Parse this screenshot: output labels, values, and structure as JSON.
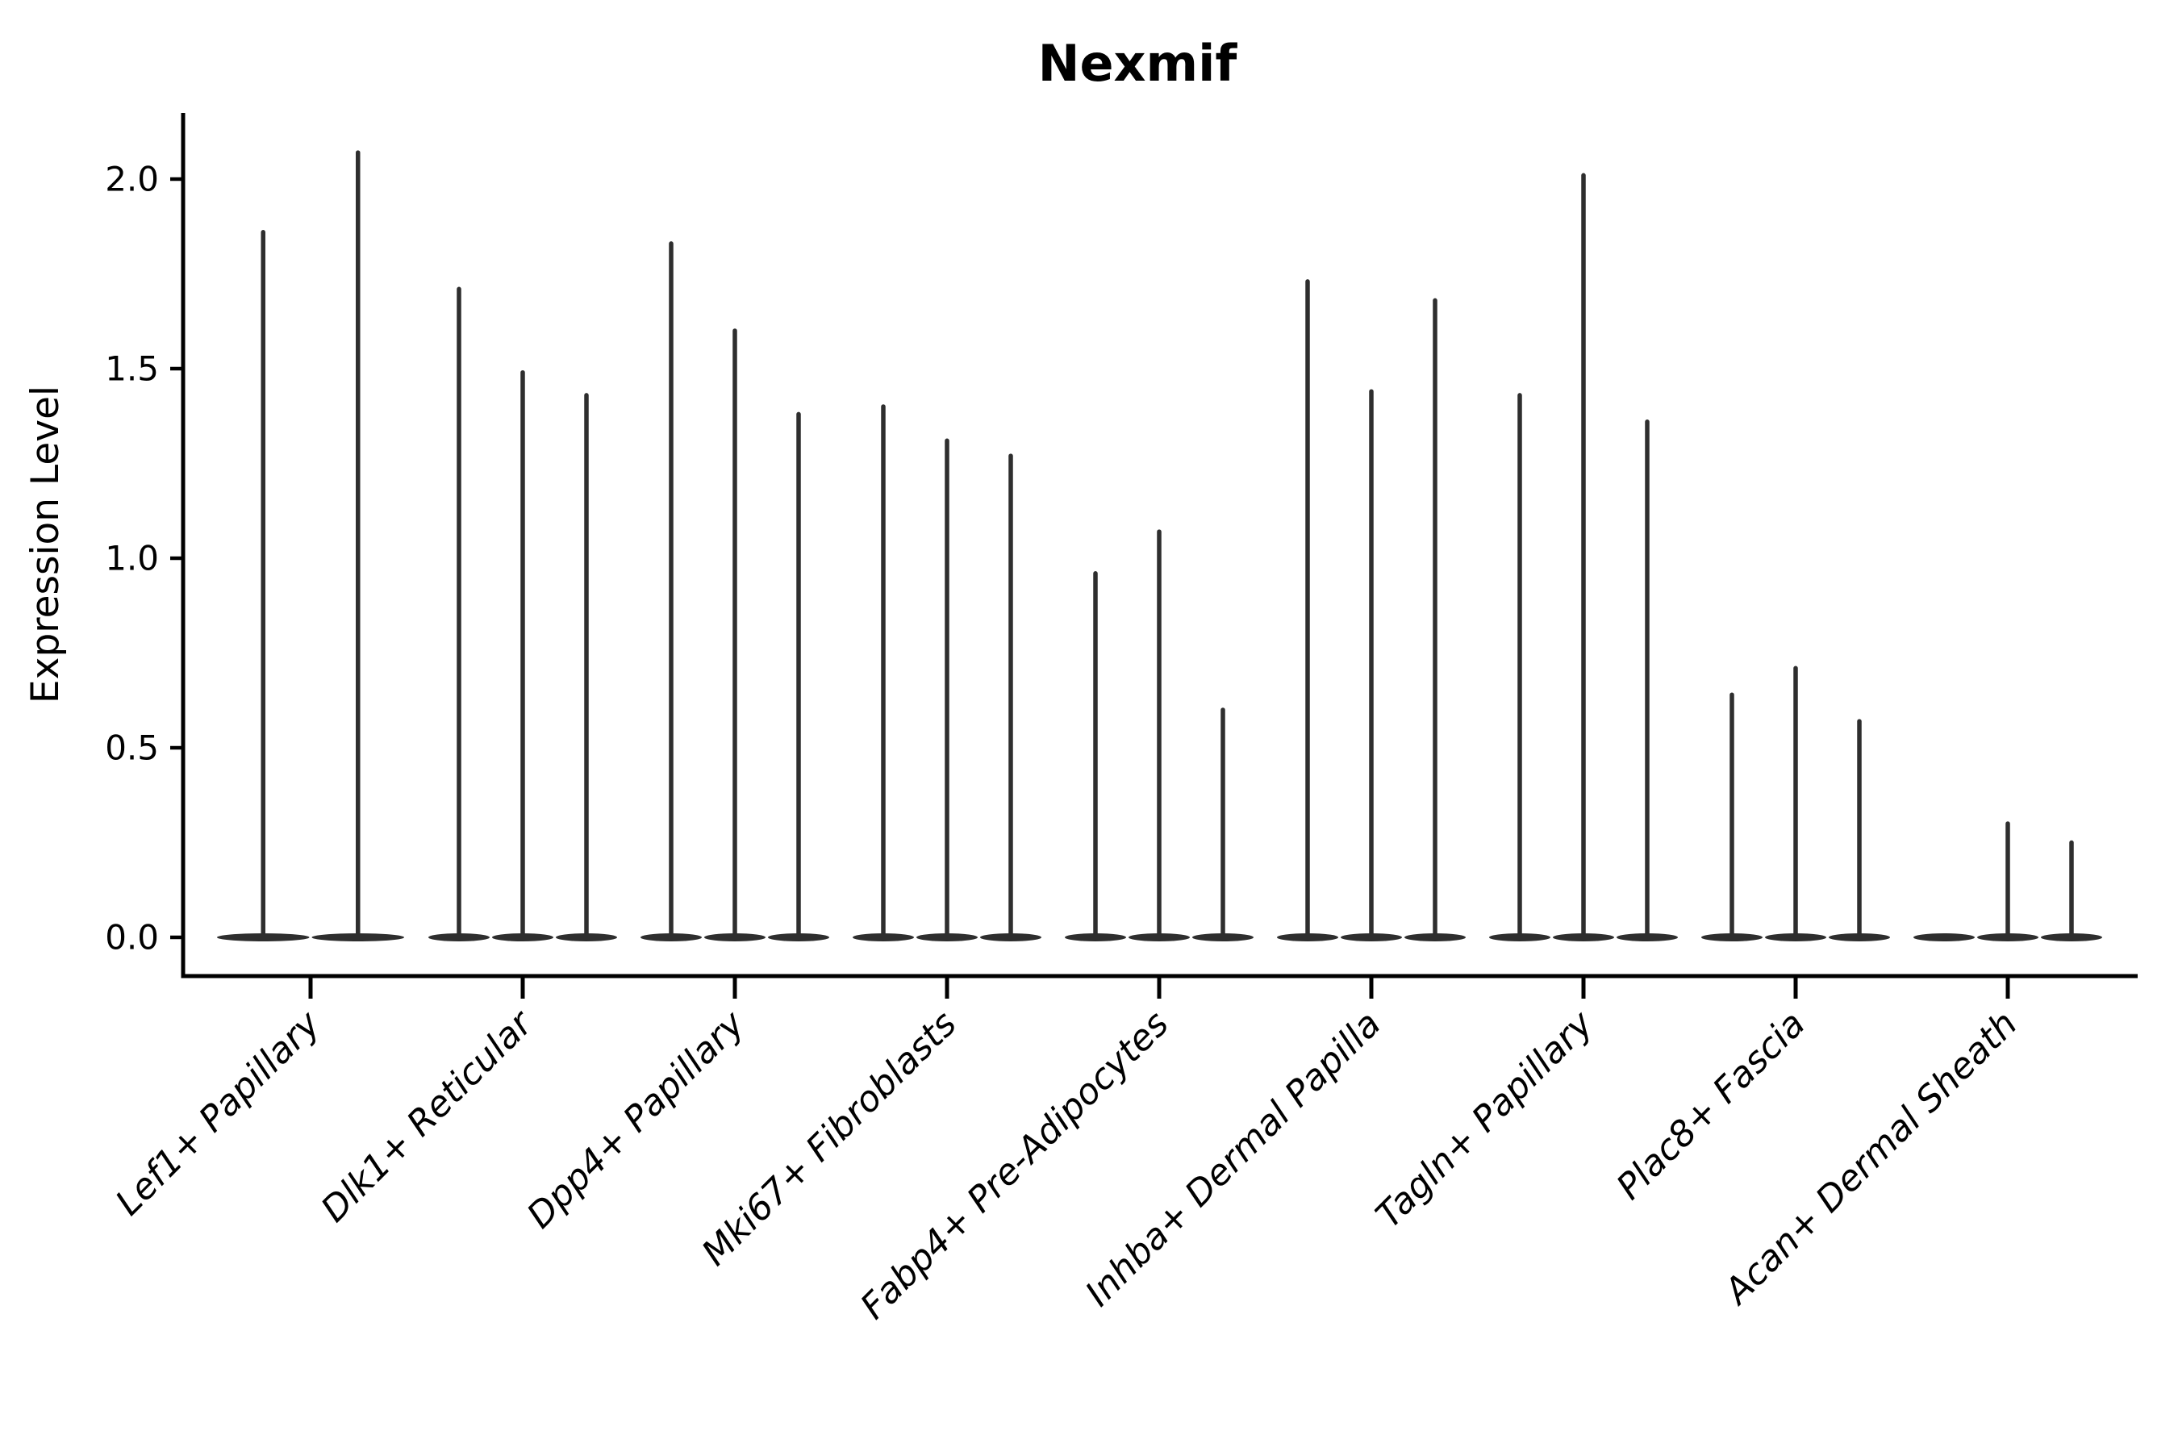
{
  "chart_data": {
    "type": "violin",
    "title": "Nexmif",
    "ylabel": "Expression Level",
    "xlabel": "",
    "ylim": [
      -0.1,
      2.18
    ],
    "yticks": [
      "0.0",
      "0.5",
      "1.0",
      "1.5",
      "2.0"
    ],
    "ytick_values": [
      0.0,
      0.5,
      1.0,
      1.5,
      2.0
    ],
    "grid": false,
    "legend": null,
    "x_label_rotation_deg": 45,
    "x_label_style": "italic",
    "categories": [
      "Lef1+ Papillary",
      "Dlk1+ Reticular",
      "Dpp4+ Papillary",
      "Mki67+ Fibroblasts",
      "Fabp4+ Pre-Adipocytes",
      "Inhba+ Dermal Papilla",
      "Tagln+ Papillary",
      "Plac8+ Fascia",
      "Acan+ Dermal Sheath"
    ],
    "series": [
      {
        "category": "Lef1+ Papillary",
        "violin_maxima": [
          1.86,
          2.07
        ]
      },
      {
        "category": "Dlk1+ Reticular",
        "violin_maxima": [
          1.71,
          1.49,
          1.43
        ]
      },
      {
        "category": "Dpp4+ Papillary",
        "violin_maxima": [
          1.83,
          1.6,
          1.38
        ]
      },
      {
        "category": "Mki67+ Fibroblasts",
        "violin_maxima": [
          1.4,
          1.31,
          1.27
        ]
      },
      {
        "category": "Fabp4+ Pre-Adipocytes",
        "violin_maxima": [
          0.96,
          1.07,
          0.6
        ]
      },
      {
        "category": "Inhba+ Dermal Papilla",
        "violin_maxima": [
          1.73,
          1.44,
          1.68
        ]
      },
      {
        "category": "Tagln+ Papillary",
        "violin_maxima": [
          1.43,
          2.01,
          1.36
        ]
      },
      {
        "category": "Plac8+ Fascia",
        "violin_maxima": [
          0.64,
          0.71,
          0.57
        ]
      },
      {
        "category": "Acan+ Dermal Sheath",
        "violin_maxima": [
          0.0,
          0.3,
          0.25
        ]
      }
    ],
    "description": "Each category shows thin violin distributions concentrated at 0 with narrow tails reaching the listed maxima.",
    "colors": {
      "violin": "#2e2e2e",
      "axis": "#000000",
      "text": "#000000",
      "background": "#ffffff"
    }
  }
}
